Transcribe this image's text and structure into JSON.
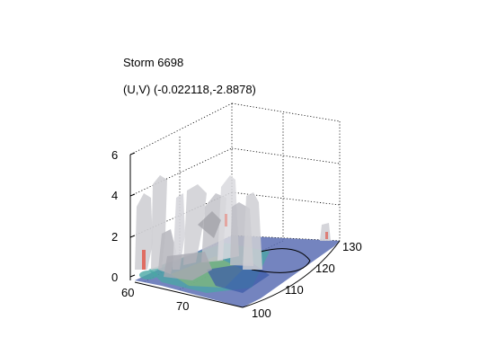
{
  "figure": {
    "title_line1": "Storm 6698",
    "title_line2": "(U,V) (-0.022118,-2.8878)"
  },
  "axes": {
    "z_ticks": [
      "0",
      "2",
      "4",
      "6"
    ],
    "x_ticks": [
      "60",
      "70"
    ],
    "y_ticks": [
      "100",
      "110",
      "120",
      "130"
    ]
  },
  "colors": {
    "isosurface": "#cfcfd4",
    "isosurface_shade": "#9d9da4",
    "floor_blue": "#5c6fb4",
    "floor_teal": "#49a7a4",
    "floor_green": "#8fc06b",
    "highlight_red": "#e05a4e",
    "grid": "#000000"
  }
}
